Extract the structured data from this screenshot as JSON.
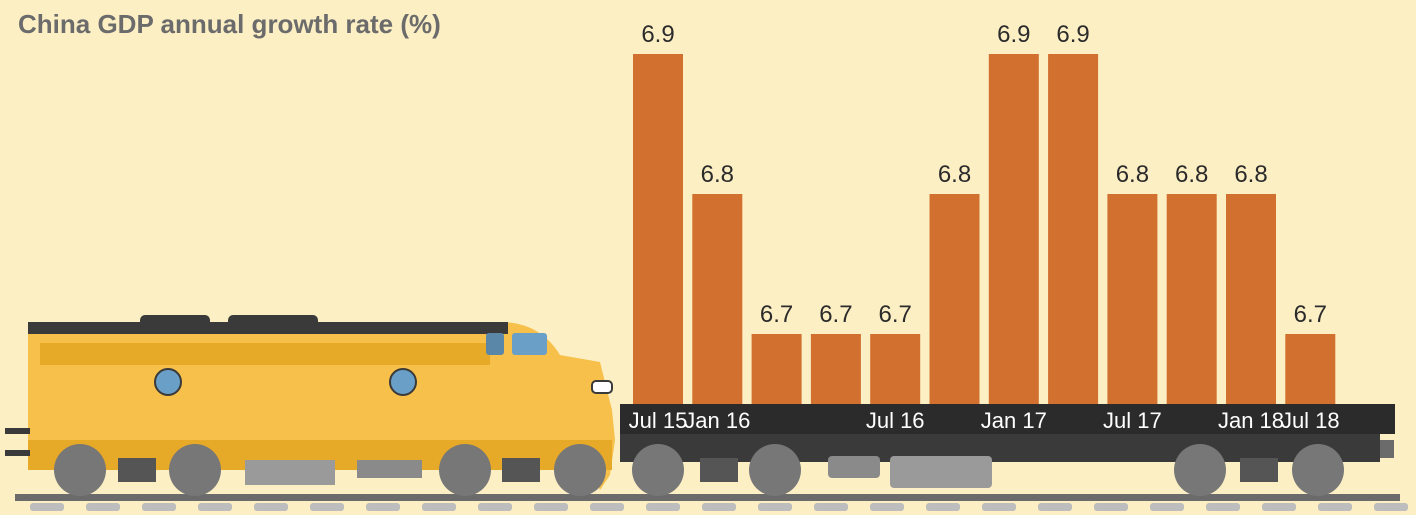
{
  "chart_data": {
    "type": "bar",
    "title": "China GDP annual growth rate (%)",
    "categories": [
      "Jul 15",
      "Jan 16",
      null,
      null,
      "Jul 16",
      null,
      "Jan 17",
      null,
      "Jul 17",
      null,
      "Jan 18",
      "Jul 18"
    ],
    "values": [
      6.9,
      6.8,
      6.7,
      6.7,
      6.7,
      6.8,
      6.9,
      6.9,
      6.8,
      6.8,
      6.8,
      6.7
    ],
    "color": "#d2702f",
    "ylim": [
      6.65,
      6.9
    ]
  }
}
